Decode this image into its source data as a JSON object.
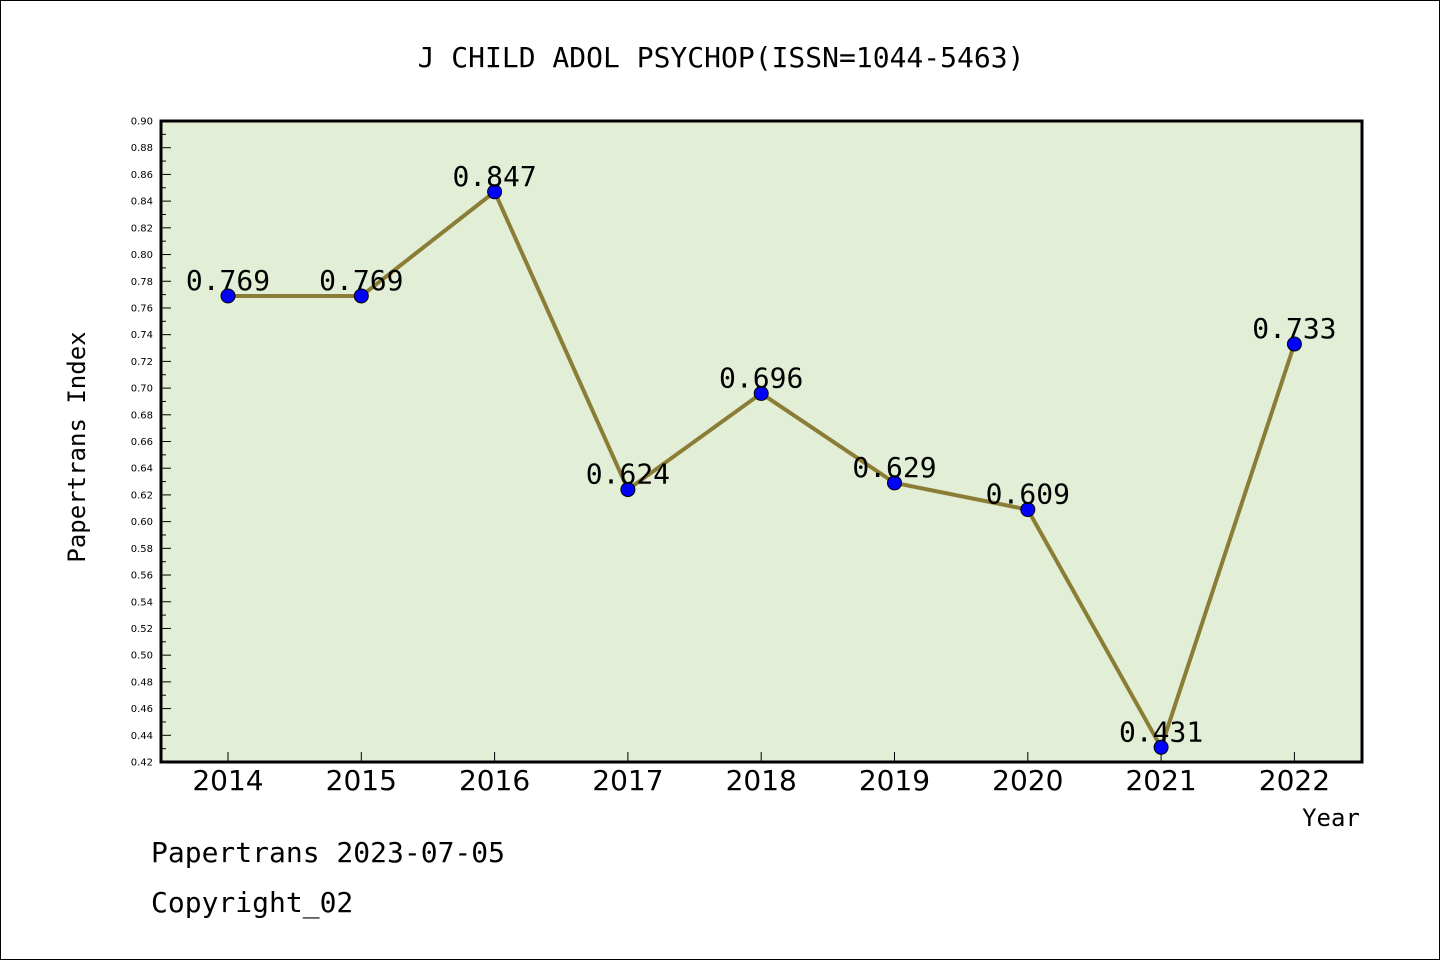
{
  "chart_data": {
    "type": "line",
    "title": "J CHILD ADOL PSYCHOP(ISSN=1044-5463)",
    "xlabel": "Year",
    "ylabel": "Papertrans Index",
    "categories": [
      "2014",
      "2015",
      "2016",
      "2017",
      "2018",
      "2019",
      "2020",
      "2021",
      "2022"
    ],
    "values": [
      0.769,
      0.769,
      0.847,
      0.624,
      0.696,
      0.629,
      0.609,
      0.431,
      0.733
    ],
    "data_labels": [
      "0.769",
      "0.769",
      "0.847",
      "0.624",
      "0.696",
      "0.629",
      "0.609",
      "0.431",
      "0.733"
    ],
    "ylim": [
      0.42,
      0.9
    ],
    "yticks": [
      "0.42",
      "0.44",
      "0.46",
      "0.48",
      "0.50",
      "0.52",
      "0.54",
      "0.56",
      "0.58",
      "0.60",
      "0.62",
      "0.64",
      "0.66",
      "0.68",
      "0.70",
      "0.72",
      "0.74",
      "0.76",
      "0.78",
      "0.80",
      "0.82",
      "0.84",
      "0.86",
      "0.88",
      "0.90"
    ],
    "grid": false,
    "colors": {
      "plot_bg": "#e2efd6",
      "line": "#8b7d35",
      "marker": "#0000ff"
    }
  },
  "footer": {
    "line1": "Papertrans 2023-07-05",
    "line2": "Copyright_02"
  }
}
